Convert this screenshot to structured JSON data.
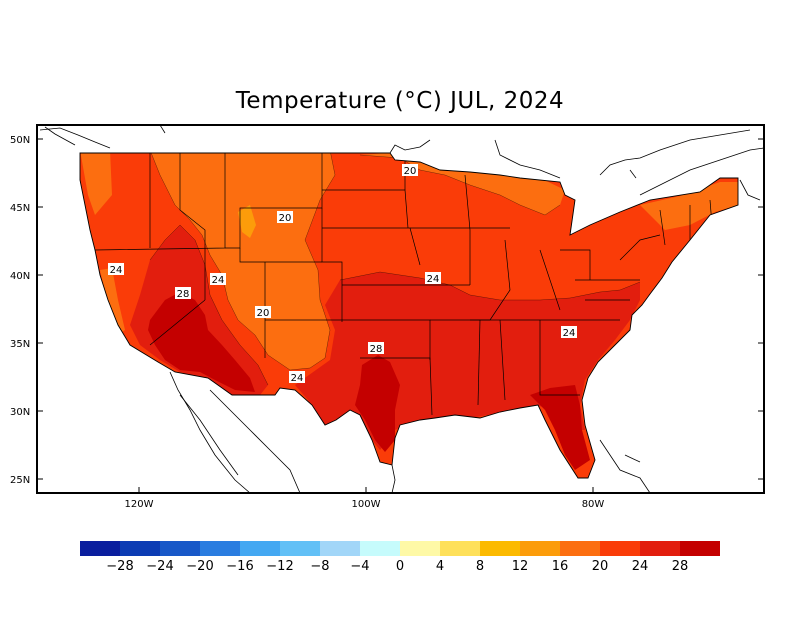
{
  "title": "Temperature (°C) JUL, 2024",
  "axes": {
    "lat_ticks": [
      "50N",
      "45N",
      "40N",
      "35N",
      "30N",
      "25N"
    ],
    "lon_ticks": [
      "120W",
      "100W",
      "80W"
    ]
  },
  "contour_labels": [
    "20",
    "20",
    "24",
    "24",
    "28",
    "20",
    "24",
    "24",
    "28",
    "24"
  ],
  "legend": {
    "values": [
      "−28",
      "−24",
      "−20",
      "−16",
      "−12",
      "−8",
      "−4",
      "0",
      "4",
      "8",
      "12",
      "16",
      "20",
      "24",
      "28"
    ],
    "colors": [
      "#0a1e9e",
      "#0c3cb4",
      "#1858c8",
      "#2a7de0",
      "#44a8f2",
      "#62c0f6",
      "#a2d6f8",
      "#c6fbfc",
      "#fef9a6",
      "#fee05a",
      "#fcba00",
      "#fc9c0a",
      "#fc6e10",
      "#fa3c08",
      "#e21e0e",
      "#c40000"
    ]
  },
  "map_colors": {
    "deg16": "#fc9c0a",
    "deg20": "#fc6e10",
    "deg24": "#fa3c08",
    "deg28": "#e21e0e",
    "deg32": "#c40000"
  }
}
